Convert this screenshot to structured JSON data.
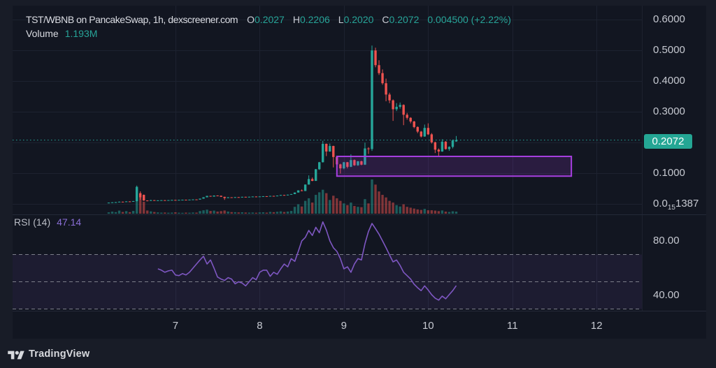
{
  "legend": {
    "title": "TST/WBNB on PancakeSwap, 1h, dexscreener.com",
    "open_label": "O",
    "open": "0.2027",
    "high_label": "H",
    "high": "0.2206",
    "low_label": "L",
    "low": "0.2020",
    "close_label": "C",
    "close": "0.2072",
    "change": "0.004500 (+2.22%)",
    "volume_label": "Volume",
    "volume_value": "1.193M"
  },
  "rsi_legend": {
    "label": "RSI (14)",
    "value": "47.14"
  },
  "price_axis": {
    "last_price": "0.2072",
    "ticks": [
      {
        "label": "0.6000",
        "price": 0.6
      },
      {
        "label": "0.5000",
        "price": 0.5
      },
      {
        "label": "0.4000",
        "price": 0.4
      },
      {
        "label": "0.3000",
        "price": 0.3
      },
      {
        "label": "0.1000",
        "price": 0.1
      },
      {
        "pre": "0.0",
        "sub": "15",
        "post": "1387",
        "price": 0.0
      }
    ]
  },
  "rsi_axis": {
    "ticks": [
      {
        "label": "80.00",
        "value": 80
      },
      {
        "label": "40.00",
        "value": 40
      }
    ]
  },
  "time_axis": {
    "ticks": [
      {
        "label": "7",
        "index": 19
      },
      {
        "label": "8",
        "index": 43
      },
      {
        "label": "9",
        "index": 67
      },
      {
        "label": "10",
        "index": 91
      },
      {
        "label": "11",
        "index": 115
      },
      {
        "label": "12",
        "index": 139
      }
    ]
  },
  "footer": {
    "brand": "TradingView"
  },
  "colors": {
    "up": "#26a69a",
    "down": "#ef5350",
    "outer_bg": "#181c27",
    "chart_bg": "#121621",
    "grid": "#1d2230",
    "separator": "#242938",
    "rsi_line": "#7e57c2",
    "rsi_band_fill": "rgba(126,87,194,0.10)",
    "rsi_dash": "#878a95",
    "box_stroke": "#a73fe0",
    "box_fill": "rgba(165,60,230,0.16)",
    "last_price_line": "#26a69a",
    "badge_bg": "#24a694"
  },
  "chart_data": {
    "type": "candlestick",
    "title": "TST/WBNB on PancakeSwap, 1h, dexscreener.com",
    "interval": "1h",
    "panes": [
      "price+volume",
      "rsi"
    ],
    "price_gridlines": [
      0.0,
      0.1,
      0.2,
      0.3,
      0.4,
      0.5,
      0.6
    ],
    "rsi_levels": {
      "upper": 70,
      "middle": 50,
      "lower": 30
    },
    "rsi_axis_range_hint": [
      20,
      100
    ],
    "last_price": 0.2072,
    "rectangle_drawing": {
      "from_index": 65,
      "to_index": 131.8,
      "price_top": 0.154,
      "price_bottom": 0.0895
    },
    "volume_unit": "M",
    "candles": [
      {
        "o": 0.0025,
        "h": 0.0032,
        "l": 0.002,
        "c": 0.003,
        "v": 0.8,
        "rsi": null
      },
      {
        "o": 0.003,
        "h": 0.0042,
        "l": 0.0028,
        "c": 0.004,
        "v": 1.2,
        "rsi": null
      },
      {
        "o": 0.004,
        "h": 0.005,
        "l": 0.0036,
        "c": 0.0045,
        "v": 0.9,
        "rsi": null
      },
      {
        "o": 0.0045,
        "h": 0.0065,
        "l": 0.0043,
        "c": 0.006,
        "v": 1.8,
        "rsi": null
      },
      {
        "o": 0.006,
        "h": 0.0062,
        "l": 0.005,
        "c": 0.0055,
        "v": 1.0,
        "rsi": null
      },
      {
        "o": 0.0055,
        "h": 0.0075,
        "l": 0.0053,
        "c": 0.007,
        "v": 1.5,
        "rsi": null
      },
      {
        "o": 0.007,
        "h": 0.0073,
        "l": 0.006,
        "c": 0.0065,
        "v": 0.9,
        "rsi": null
      },
      {
        "o": 0.0065,
        "h": 0.0085,
        "l": 0.0063,
        "c": 0.008,
        "v": 1.6,
        "rsi": null
      },
      {
        "o": 0.008,
        "h": 0.0586,
        "l": 0.007,
        "c": 0.0546,
        "v": 14.5,
        "rsi": null
      },
      {
        "o": 0.0338,
        "h": 0.0398,
        "l": 0.0124,
        "c": 0.0205,
        "v": 10.0,
        "rsi": null
      },
      {
        "o": 0.0284,
        "h": 0.0295,
        "l": 0.009,
        "c": 0.0101,
        "v": 7.0,
        "rsi": null
      },
      {
        "o": 0.0101,
        "h": 0.0105,
        "l": 0.0075,
        "c": 0.0092,
        "v": 1.86,
        "rsi": null
      },
      {
        "o": 0.0092,
        "h": 0.0122,
        "l": 0.009,
        "c": 0.011,
        "v": 1.36,
        "rsi": null
      },
      {
        "o": 0.011,
        "h": 0.0115,
        "l": 0.0092,
        "c": 0.0098,
        "v": 0.99,
        "rsi": null
      },
      {
        "o": 0.0098,
        "h": 0.0108,
        "l": 0.0095,
        "c": 0.0105,
        "v": 0.74,
        "rsi": 59.5
      },
      {
        "o": 0.0105,
        "h": 0.0113,
        "l": 0.0102,
        "c": 0.011,
        "v": 0.62,
        "rsi": 58.5
      },
      {
        "o": 0.011,
        "h": 0.0112,
        "l": 0.01,
        "c": 0.0105,
        "v": 0.68,
        "rsi": 57.0
      },
      {
        "o": 0.0105,
        "h": 0.0115,
        "l": 0.0103,
        "c": 0.0112,
        "v": 0.56,
        "rsi": 58.0
      },
      {
        "o": 0.0112,
        "h": 0.012,
        "l": 0.011,
        "c": 0.0118,
        "v": 0.62,
        "rsi": 58.5
      },
      {
        "o": 0.0118,
        "h": 0.012,
        "l": 0.0108,
        "c": 0.0112,
        "v": 0.81,
        "rsi": 55.0
      },
      {
        "o": 0.0112,
        "h": 0.0122,
        "l": 0.011,
        "c": 0.012,
        "v": 0.56,
        "rsi": 54.5
      },
      {
        "o": 0.012,
        "h": 0.0128,
        "l": 0.0118,
        "c": 0.0125,
        "v": 0.5,
        "rsi": 56.0
      },
      {
        "o": 0.0125,
        "h": 0.0127,
        "l": 0.0115,
        "c": 0.012,
        "v": 0.62,
        "rsi": 55.0
      },
      {
        "o": 0.012,
        "h": 0.013,
        "l": 0.0118,
        "c": 0.0128,
        "v": 0.56,
        "rsi": 57.0
      },
      {
        "o": 0.0128,
        "h": 0.0138,
        "l": 0.0126,
        "c": 0.0135,
        "v": 0.68,
        "rsi": 60.0
      },
      {
        "o": 0.0135,
        "h": 0.0137,
        "l": 0.0125,
        "c": 0.013,
        "v": 0.62,
        "rsi": 63.0
      },
      {
        "o": 0.013,
        "h": 0.0163,
        "l": 0.0128,
        "c": 0.016,
        "v": 1.55,
        "rsi": 66.0
      },
      {
        "o": 0.016,
        "h": 0.0208,
        "l": 0.0158,
        "c": 0.0205,
        "v": 1.98,
        "rsi": 68.7
      },
      {
        "o": 0.0205,
        "h": 0.0253,
        "l": 0.0203,
        "c": 0.025,
        "v": 2.36,
        "rsi": 63.0
      },
      {
        "o": 0.025,
        "h": 0.0252,
        "l": 0.0222,
        "c": 0.0228,
        "v": 1.61,
        "rsi": 66.0
      },
      {
        "o": 0.0228,
        "h": 0.0265,
        "l": 0.0226,
        "c": 0.0262,
        "v": 1.8,
        "rsi": 60.0
      },
      {
        "o": 0.0262,
        "h": 0.0268,
        "l": 0.0248,
        "c": 0.0255,
        "v": 1.24,
        "rsi": 53.5
      },
      {
        "o": 0.0255,
        "h": 0.0257,
        "l": 0.0215,
        "c": 0.022,
        "v": 1.49,
        "rsi": 52.0
      },
      {
        "o": 0.022,
        "h": 0.0222,
        "l": 0.012,
        "c": 0.018,
        "v": 1.86,
        "rsi": 51.0
      },
      {
        "o": 0.018,
        "h": 0.0208,
        "l": 0.0178,
        "c": 0.0205,
        "v": 1.24,
        "rsi": 53.0
      },
      {
        "o": 0.0205,
        "h": 0.0207,
        "l": 0.0185,
        "c": 0.019,
        "v": 0.93,
        "rsi": 52.0
      },
      {
        "o": 0.019,
        "h": 0.0213,
        "l": 0.0188,
        "c": 0.021,
        "v": 0.87,
        "rsi": 48.5
      },
      {
        "o": 0.021,
        "h": 0.0212,
        "l": 0.0198,
        "c": 0.0202,
        "v": 0.74,
        "rsi": 50.0
      },
      {
        "o": 0.0202,
        "h": 0.0222,
        "l": 0.02,
        "c": 0.022,
        "v": 0.81,
        "rsi": 49.0
      },
      {
        "o": 0.022,
        "h": 0.0222,
        "l": 0.0205,
        "c": 0.021,
        "v": 0.68,
        "rsi": 47.0
      },
      {
        "o": 0.021,
        "h": 0.0224,
        "l": 0.0208,
        "c": 0.0222,
        "v": 0.62,
        "rsi": 50.0
      },
      {
        "o": 0.0222,
        "h": 0.0232,
        "l": 0.022,
        "c": 0.023,
        "v": 0.68,
        "rsi": 53.0
      },
      {
        "o": 0.023,
        "h": 0.0232,
        "l": 0.0218,
        "c": 0.0221,
        "v": 0.56,
        "rsi": 51.5
      },
      {
        "o": 0.0221,
        "h": 0.0234,
        "l": 0.0219,
        "c": 0.0232,
        "v": 0.74,
        "rsi": 57.0
      },
      {
        "o": 0.0232,
        "h": 0.0242,
        "l": 0.023,
        "c": 0.024,
        "v": 0.81,
        "rsi": 58.5
      },
      {
        "o": 0.024,
        "h": 0.0242,
        "l": 0.0226,
        "c": 0.023,
        "v": 0.62,
        "rsi": 58.5
      },
      {
        "o": 0.023,
        "h": 0.0252,
        "l": 0.0228,
        "c": 0.025,
        "v": 1.05,
        "rsi": 54.0
      },
      {
        "o": 0.025,
        "h": 0.0252,
        "l": 0.0236,
        "c": 0.024,
        "v": 0.87,
        "rsi": 57.0
      },
      {
        "o": 0.024,
        "h": 0.0262,
        "l": 0.0238,
        "c": 0.026,
        "v": 1.12,
        "rsi": 55.5
      },
      {
        "o": 0.026,
        "h": 0.0282,
        "l": 0.0258,
        "c": 0.028,
        "v": 1.36,
        "rsi": 59.5
      },
      {
        "o": 0.028,
        "h": 0.0282,
        "l": 0.0264,
        "c": 0.0268,
        "v": 0.99,
        "rsi": 63.0
      },
      {
        "o": 0.0268,
        "h": 0.0292,
        "l": 0.0266,
        "c": 0.029,
        "v": 1.24,
        "rsi": 61.0
      },
      {
        "o": 0.029,
        "h": 0.0312,
        "l": 0.0288,
        "c": 0.031,
        "v": 1.61,
        "rsi": 67.0
      },
      {
        "o": 0.031,
        "h": 0.0362,
        "l": 0.0308,
        "c": 0.036,
        "v": 4.0,
        "rsi": 65.0
      },
      {
        "o": 0.036,
        "h": 0.0432,
        "l": 0.0358,
        "c": 0.043,
        "v": 5.5,
        "rsi": 72.3
      },
      {
        "o": 0.043,
        "h": 0.046,
        "l": 0.0405,
        "c": 0.041,
        "v": 4.2,
        "rsi": 80.0
      },
      {
        "o": 0.041,
        "h": 0.0625,
        "l": 0.0408,
        "c": 0.062,
        "v": 7.5,
        "rsi": 82.5
      },
      {
        "o": 0.062,
        "h": 0.092,
        "l": 0.0618,
        "c": 0.08,
        "v": 9.0,
        "rsi": 87.7
      },
      {
        "o": 0.08,
        "h": 0.085,
        "l": 0.073,
        "c": 0.074,
        "v": 6.5,
        "rsi": 84.0
      },
      {
        "o": 0.074,
        "h": 0.113,
        "l": 0.0738,
        "c": 0.112,
        "v": 11.0,
        "rsi": 90.0
      },
      {
        "o": 0.112,
        "h": 0.136,
        "l": 0.11,
        "c": 0.135,
        "v": 12.5,
        "rsi": 86.0
      },
      {
        "o": 0.135,
        "h": 0.205,
        "l": 0.134,
        "c": 0.195,
        "v": 14.0,
        "rsi": 94.0
      },
      {
        "o": 0.195,
        "h": 0.196,
        "l": 0.155,
        "c": 0.17,
        "v": 12.0,
        "rsi": 88.0
      },
      {
        "o": 0.17,
        "h": 0.196,
        "l": 0.169,
        "c": 0.188,
        "v": 8.0,
        "rsi": 80.0
      },
      {
        "o": 0.188,
        "h": 0.189,
        "l": 0.118,
        "c": 0.152,
        "v": 10.5,
        "rsi": 75.0
      },
      {
        "o": 0.152,
        "h": 0.153,
        "l": 0.104,
        "c": 0.128,
        "v": 9.0,
        "rsi": 72.3
      },
      {
        "o": 0.128,
        "h": 0.13,
        "l": 0.098,
        "c": 0.115,
        "v": 7.5,
        "rsi": 67.0
      },
      {
        "o": 0.115,
        "h": 0.136,
        "l": 0.112,
        "c": 0.135,
        "v": 6.0,
        "rsi": 59.5
      },
      {
        "o": 0.135,
        "h": 0.136,
        "l": 0.115,
        "c": 0.12,
        "v": 5.0,
        "rsi": 61.0
      },
      {
        "o": 0.12,
        "h": 0.161,
        "l": 0.119,
        "c": 0.142,
        "v": 6.5,
        "rsi": 57.0
      },
      {
        "o": 0.142,
        "h": 0.144,
        "l": 0.123,
        "c": 0.125,
        "v": 4.5,
        "rsi": 63.0
      },
      {
        "o": 0.125,
        "h": 0.139,
        "l": 0.123,
        "c": 0.138,
        "v": 4.0,
        "rsi": 67.0
      },
      {
        "o": 0.138,
        "h": 0.14,
        "l": 0.125,
        "c": 0.127,
        "v": 3.8,
        "rsi": 66.0
      },
      {
        "o": 0.127,
        "h": 0.199,
        "l": 0.126,
        "c": 0.18,
        "v": 8.5,
        "rsi": 78.0
      },
      {
        "o": 0.18,
        "h": 0.184,
        "l": 0.162,
        "c": 0.178,
        "v": 6.0,
        "rsi": 87.0
      },
      {
        "o": 0.178,
        "h": 0.516,
        "l": 0.172,
        "c": 0.5,
        "v": 20.0,
        "rsi": 92.8
      },
      {
        "o": 0.5,
        "h": 0.509,
        "l": 0.445,
        "c": 0.452,
        "v": 17.0,
        "rsi": 89.0
      },
      {
        "o": 0.452,
        "h": 0.468,
        "l": 0.42,
        "c": 0.426,
        "v": 13.0,
        "rsi": 85.0
      },
      {
        "o": 0.426,
        "h": 0.438,
        "l": 0.388,
        "c": 0.393,
        "v": 11.0,
        "rsi": 80.0
      },
      {
        "o": 0.393,
        "h": 0.408,
        "l": 0.334,
        "c": 0.356,
        "v": 9.5,
        "rsi": 75.0
      },
      {
        "o": 0.356,
        "h": 0.362,
        "l": 0.328,
        "c": 0.337,
        "v": 7.5,
        "rsi": 69.7
      },
      {
        "o": 0.337,
        "h": 0.34,
        "l": 0.27,
        "c": 0.308,
        "v": 6.5,
        "rsi": 64.6
      },
      {
        "o": 0.308,
        "h": 0.328,
        "l": 0.302,
        "c": 0.316,
        "v": 5.0,
        "rsi": 66.0
      },
      {
        "o": 0.316,
        "h": 0.33,
        "l": 0.31,
        "c": 0.322,
        "v": 4.2,
        "rsi": 62.0
      },
      {
        "o": 0.322,
        "h": 0.324,
        "l": 0.256,
        "c": 0.29,
        "v": 5.5,
        "rsi": 57.0
      },
      {
        "o": 0.29,
        "h": 0.296,
        "l": 0.274,
        "c": 0.28,
        "v": 4.0,
        "rsi": 54.5
      },
      {
        "o": 0.28,
        "h": 0.282,
        "l": 0.262,
        "c": 0.268,
        "v": 3.5,
        "rsi": 52.0
      },
      {
        "o": 0.268,
        "h": 0.27,
        "l": 0.246,
        "c": 0.25,
        "v": 3.0,
        "rsi": 48.2
      },
      {
        "o": 0.25,
        "h": 0.252,
        "l": 0.23,
        "c": 0.235,
        "v": 2.5,
        "rsi": 45.6
      },
      {
        "o": 0.235,
        "h": 0.237,
        "l": 0.216,
        "c": 0.219,
        "v": 2.2,
        "rsi": 43.5
      },
      {
        "o": 0.219,
        "h": 0.258,
        "l": 0.218,
        "c": 0.247,
        "v": 2.8,
        "rsi": 47.0
      },
      {
        "o": 0.247,
        "h": 0.262,
        "l": 0.224,
        "c": 0.226,
        "v": 2.0,
        "rsi": 44.0
      },
      {
        "o": 0.226,
        "h": 0.23,
        "l": 0.196,
        "c": 0.2,
        "v": 2.0,
        "rsi": 40.5
      },
      {
        "o": 0.2,
        "h": 0.202,
        "l": 0.165,
        "c": 0.176,
        "v": 1.8,
        "rsi": 37.9
      },
      {
        "o": 0.176,
        "h": 0.18,
        "l": 0.152,
        "c": 0.17,
        "v": 1.5,
        "rsi": 36.5
      },
      {
        "o": 0.17,
        "h": 0.21,
        "l": 0.169,
        "c": 0.202,
        "v": 1.9,
        "rsi": 39.5
      },
      {
        "o": 0.202,
        "h": 0.204,
        "l": 0.176,
        "c": 0.178,
        "v": 1.2,
        "rsi": 37.5
      },
      {
        "o": 0.178,
        "h": 0.187,
        "l": 0.172,
        "c": 0.185,
        "v": 1.0,
        "rsi": 40.5
      },
      {
        "o": 0.185,
        "h": 0.209,
        "l": 0.18,
        "c": 0.206,
        "v": 1.4,
        "rsi": 43.5
      },
      {
        "o": 0.2027,
        "h": 0.2206,
        "l": 0.202,
        "c": 0.2072,
        "v": 1.193,
        "rsi": 47.14
      }
    ]
  }
}
